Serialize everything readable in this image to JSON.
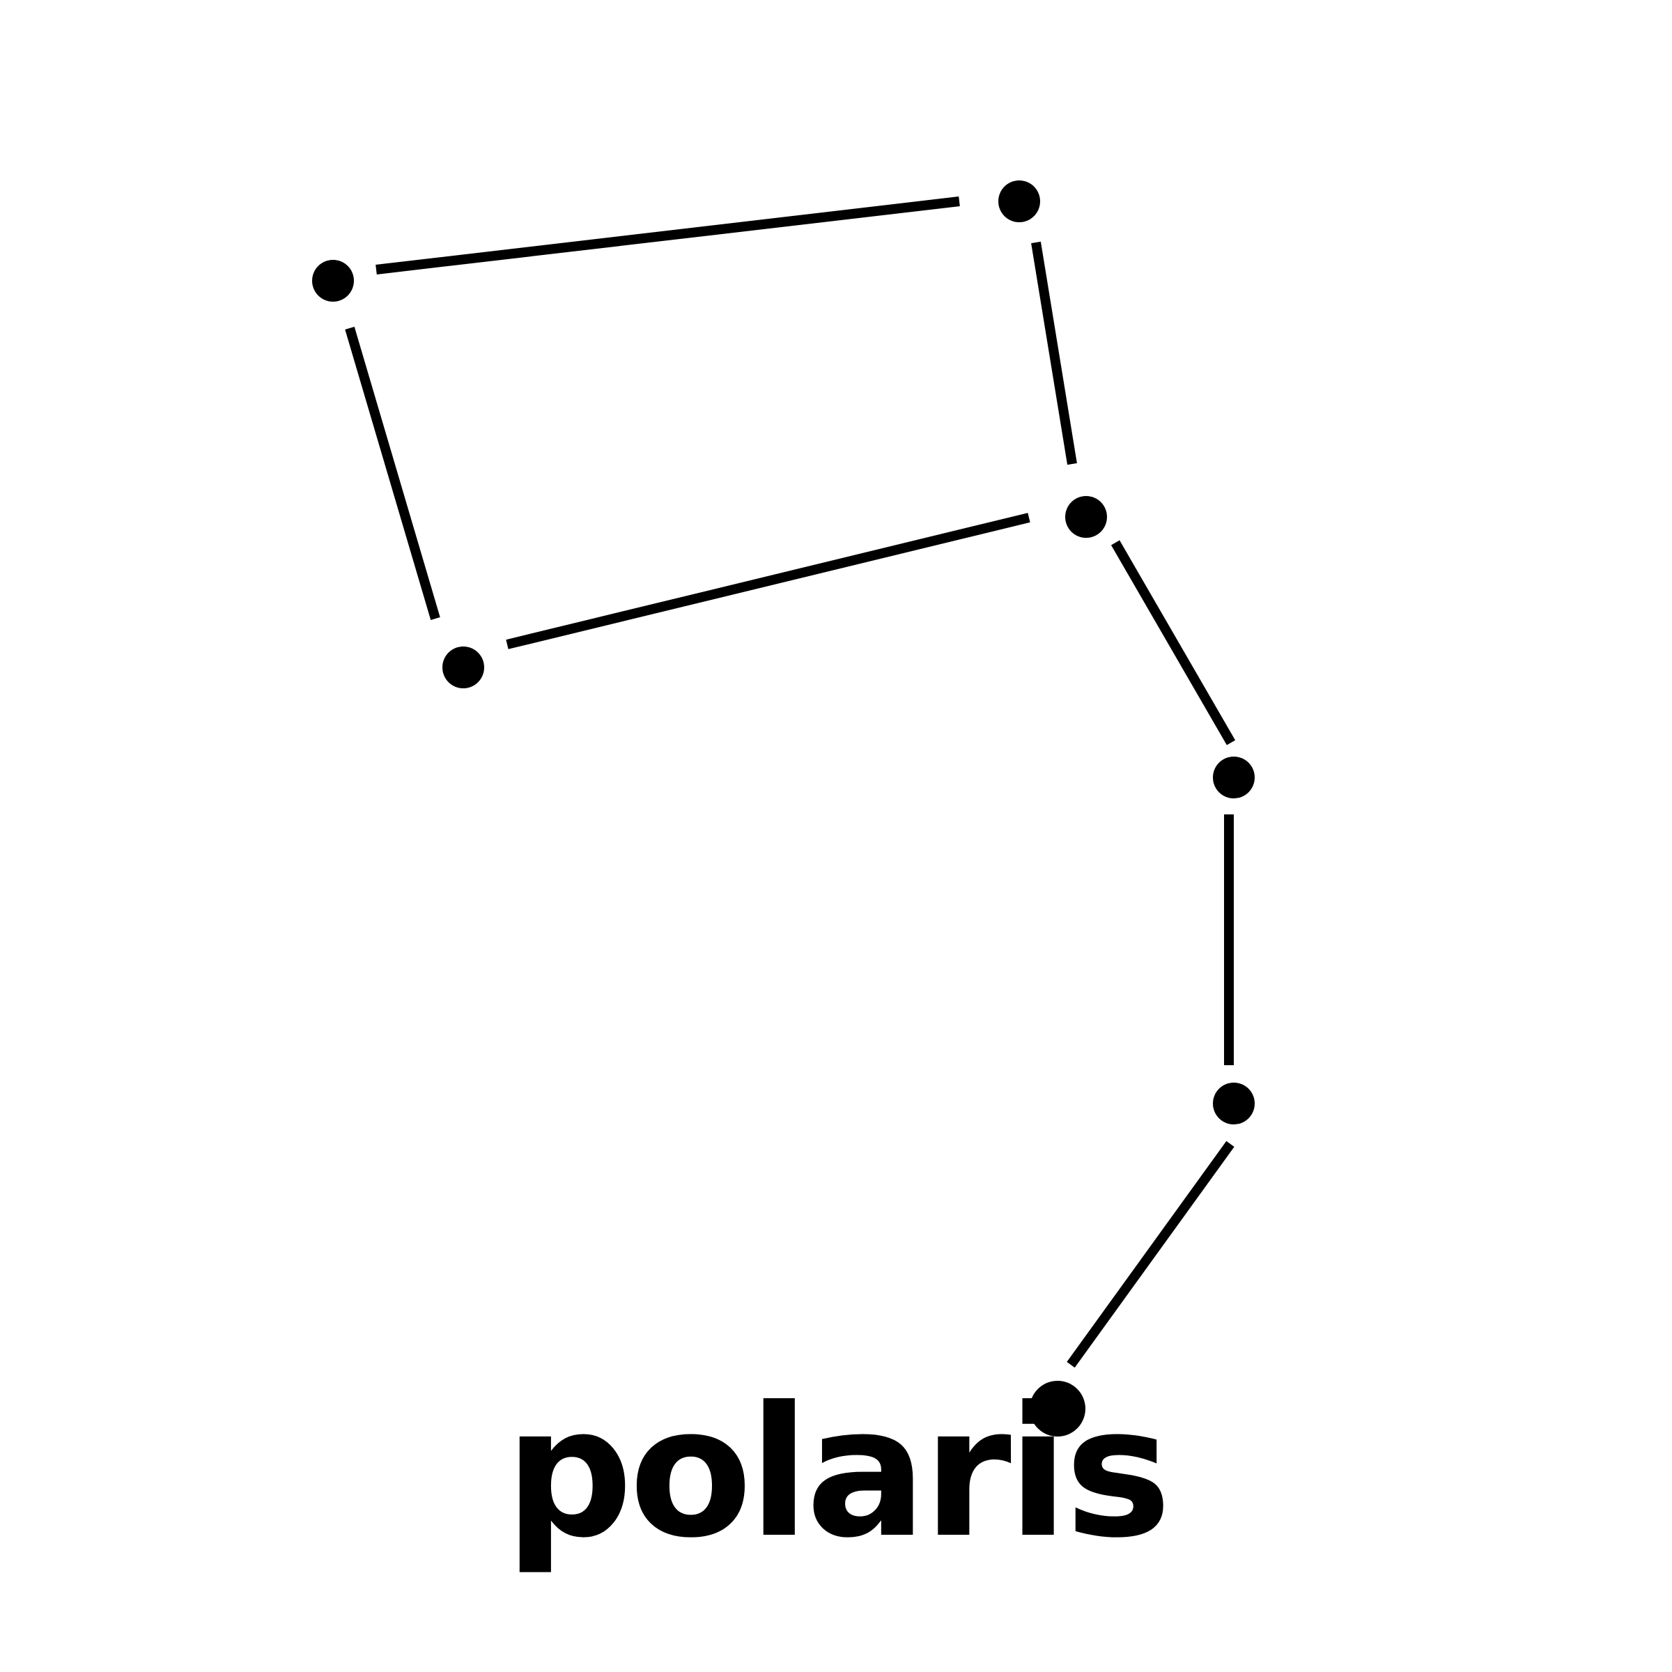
{
  "brand": {
    "name": "polaris"
  },
  "logo": {
    "icon": "constellation-icon",
    "color": "#000000",
    "background": "#ffffff"
  }
}
